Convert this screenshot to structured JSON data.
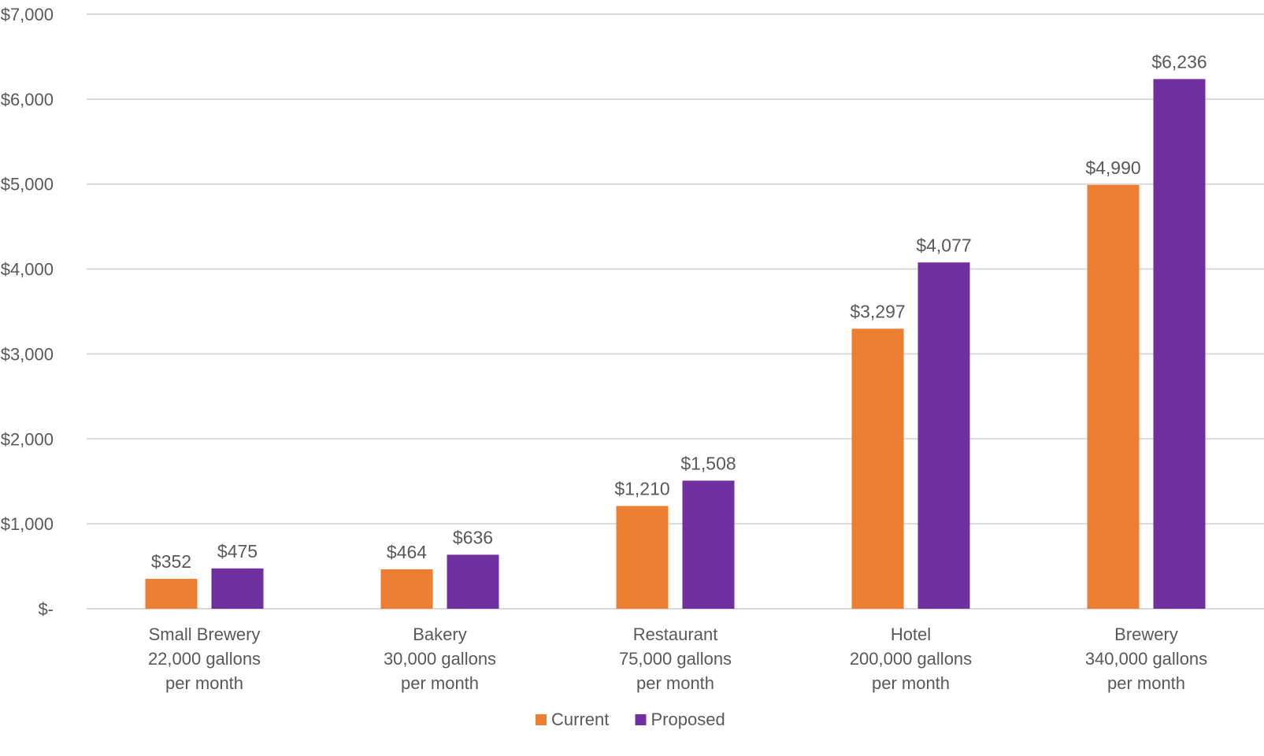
{
  "chart_data": {
    "type": "bar",
    "title": "",
    "xlabel": "",
    "ylabel": "",
    "categories": [
      [
        "Small Brewery",
        "22,000 gallons",
        "per month"
      ],
      [
        "Bakery",
        "30,000 gallons",
        "per month"
      ],
      [
        "Restaurant",
        "75,000 gallons",
        "per month"
      ],
      [
        "Hotel",
        "200,000 gallons",
        "per month"
      ],
      [
        "Brewery",
        "340,000 gallons",
        "per month"
      ]
    ],
    "series": [
      {
        "name": "Current",
        "color": "#ed7d31",
        "values": [
          352,
          464,
          1210,
          3297,
          4990
        ],
        "labels": [
          "$352",
          "$464",
          "$1,210",
          "$3,297",
          "$4,990"
        ]
      },
      {
        "name": "Proposed",
        "color": "#7030a0",
        "values": [
          475,
          636,
          1508,
          4077,
          6236
        ],
        "labels": [
          "$475",
          "$636",
          "$1,508",
          "$4,077",
          "$6,236"
        ]
      }
    ],
    "ylim": [
      0,
      7000
    ],
    "yticks": [
      0,
      1000,
      2000,
      3000,
      4000,
      5000,
      6000,
      7000
    ],
    "ytick_labels": [
      "$-",
      "$1,000",
      "$2,000",
      "$3,000",
      "$4,000",
      "$5,000",
      "$6,000",
      "$7,000"
    ],
    "grid": true,
    "legend_position": "bottom-center"
  }
}
